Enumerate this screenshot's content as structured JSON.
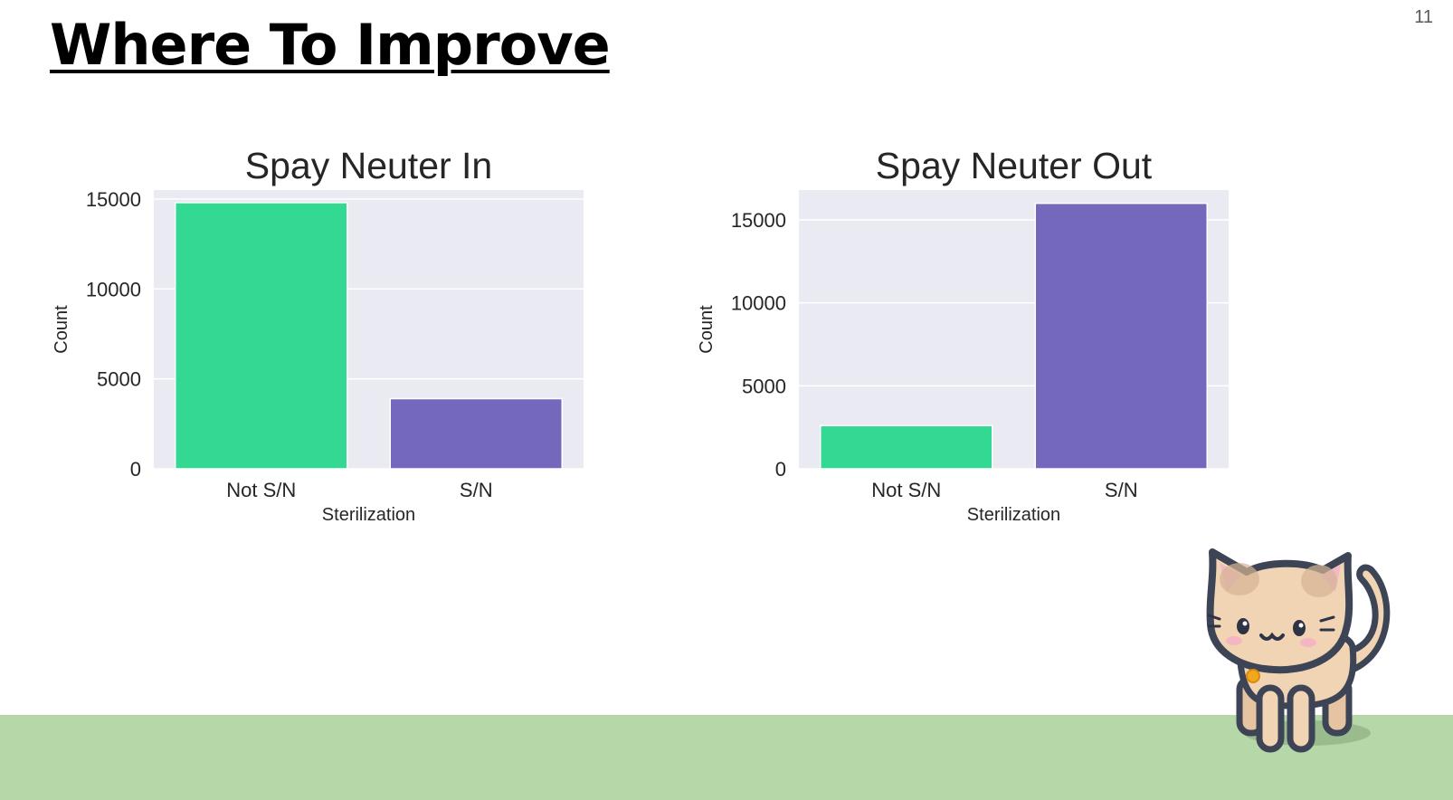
{
  "slide": {
    "title": "Where To Improve",
    "page_number": "11"
  },
  "colors": {
    "plot_background": "#eaeaf2",
    "gridline": "#ffffff",
    "not_sn_bar": "#33d993",
    "sn_bar": "#7468bd",
    "ground": "#b6d7a8",
    "text": "#262626"
  },
  "icons": {
    "mascot": "kitten-icon"
  },
  "chart_data": [
    {
      "type": "bar",
      "title": "Spay Neuter In",
      "xlabel": "Sterilization",
      "ylabel": "Count",
      "categories": [
        "Not S/N",
        "S/N"
      ],
      "values": [
        14800,
        3900
      ],
      "ylim": [
        0,
        15500
      ],
      "yticks": [
        0,
        5000,
        10000,
        15000
      ],
      "grid": true,
      "legend": "none"
    },
    {
      "type": "bar",
      "title": "Spay Neuter Out",
      "xlabel": "Sterilization",
      "ylabel": "Count",
      "categories": [
        "Not S/N",
        "S/N"
      ],
      "values": [
        2600,
        16000
      ],
      "ylim": [
        0,
        16800
      ],
      "yticks": [
        0,
        5000,
        10000,
        15000
      ],
      "grid": true,
      "legend": "none"
    }
  ]
}
